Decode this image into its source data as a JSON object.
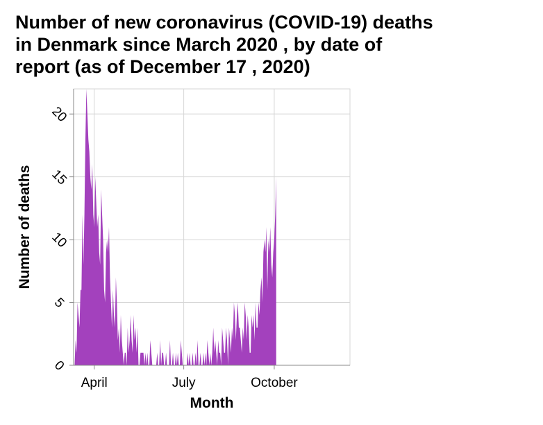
{
  "chart_data": {
    "type": "area",
    "title_lines": [
      "Number of new coronavirus (COVID-19) deaths",
      "in Denmark since March 2020 , by date of",
      "report (as of December 17 , 2020)"
    ],
    "xlabel": "Month",
    "ylabel": "Number of deaths",
    "x_ticks": [
      {
        "label": "April",
        "date": "2020-04-01"
      },
      {
        "label": "July",
        "date": "2020-07-01"
      },
      {
        "label": "October",
        "date": "2020-10-01"
      }
    ],
    "y_ticks": [
      0,
      5,
      10,
      15,
      20
    ],
    "ylim": [
      0,
      22
    ],
    "xlim": [
      "2020-03-11",
      "2020-12-17"
    ],
    "grid": true,
    "color": "#a341bd",
    "series": [
      {
        "start_date": "2020-03-11",
        "values": [
          0,
          0,
          2,
          1,
          5,
          4,
          3,
          6,
          6,
          12,
          8,
          12,
          18,
          22,
          20,
          18,
          17,
          15,
          14,
          16,
          12,
          11,
          15,
          13,
          11,
          12,
          9,
          8,
          14,
          12,
          10,
          6,
          5,
          9,
          10,
          9,
          11,
          7,
          5,
          3,
          6,
          4,
          3,
          7,
          5,
          2,
          3,
          1,
          4,
          2,
          1,
          0,
          1,
          1,
          0,
          3,
          1,
          2,
          4,
          2,
          1,
          4,
          2,
          3,
          1,
          3,
          0,
          0,
          1,
          1,
          1,
          1,
          0,
          1,
          0,
          1,
          0,
          0,
          2,
          1,
          0,
          0,
          0,
          0,
          0,
          1,
          0,
          0,
          2,
          0,
          1,
          1,
          0,
          0,
          1,
          0,
          0,
          0,
          2,
          0,
          0,
          1,
          0,
          0,
          1,
          0,
          1,
          0,
          0,
          2,
          1,
          0,
          0,
          0,
          0,
          0,
          1,
          0,
          1,
          0,
          0,
          1,
          0,
          0,
          1,
          0,
          2,
          0,
          0,
          1,
          0,
          0,
          1,
          0,
          1,
          0,
          2,
          1,
          0,
          1,
          0,
          1,
          3,
          1,
          2,
          1,
          0,
          2,
          1,
          1,
          0,
          3,
          2,
          1,
          1,
          3,
          2,
          0,
          3,
          2,
          1,
          3,
          2,
          5,
          4,
          2,
          4,
          5,
          3,
          3,
          2,
          1,
          3,
          2,
          5,
          4,
          2,
          4,
          3,
          1,
          1,
          4,
          3,
          4,
          2,
          5,
          3,
          3,
          5,
          4,
          6,
          7,
          5,
          9,
          10,
          9,
          11,
          6,
          10,
          9,
          11,
          8,
          7,
          9,
          10,
          12,
          15
        ]
      }
    ]
  }
}
